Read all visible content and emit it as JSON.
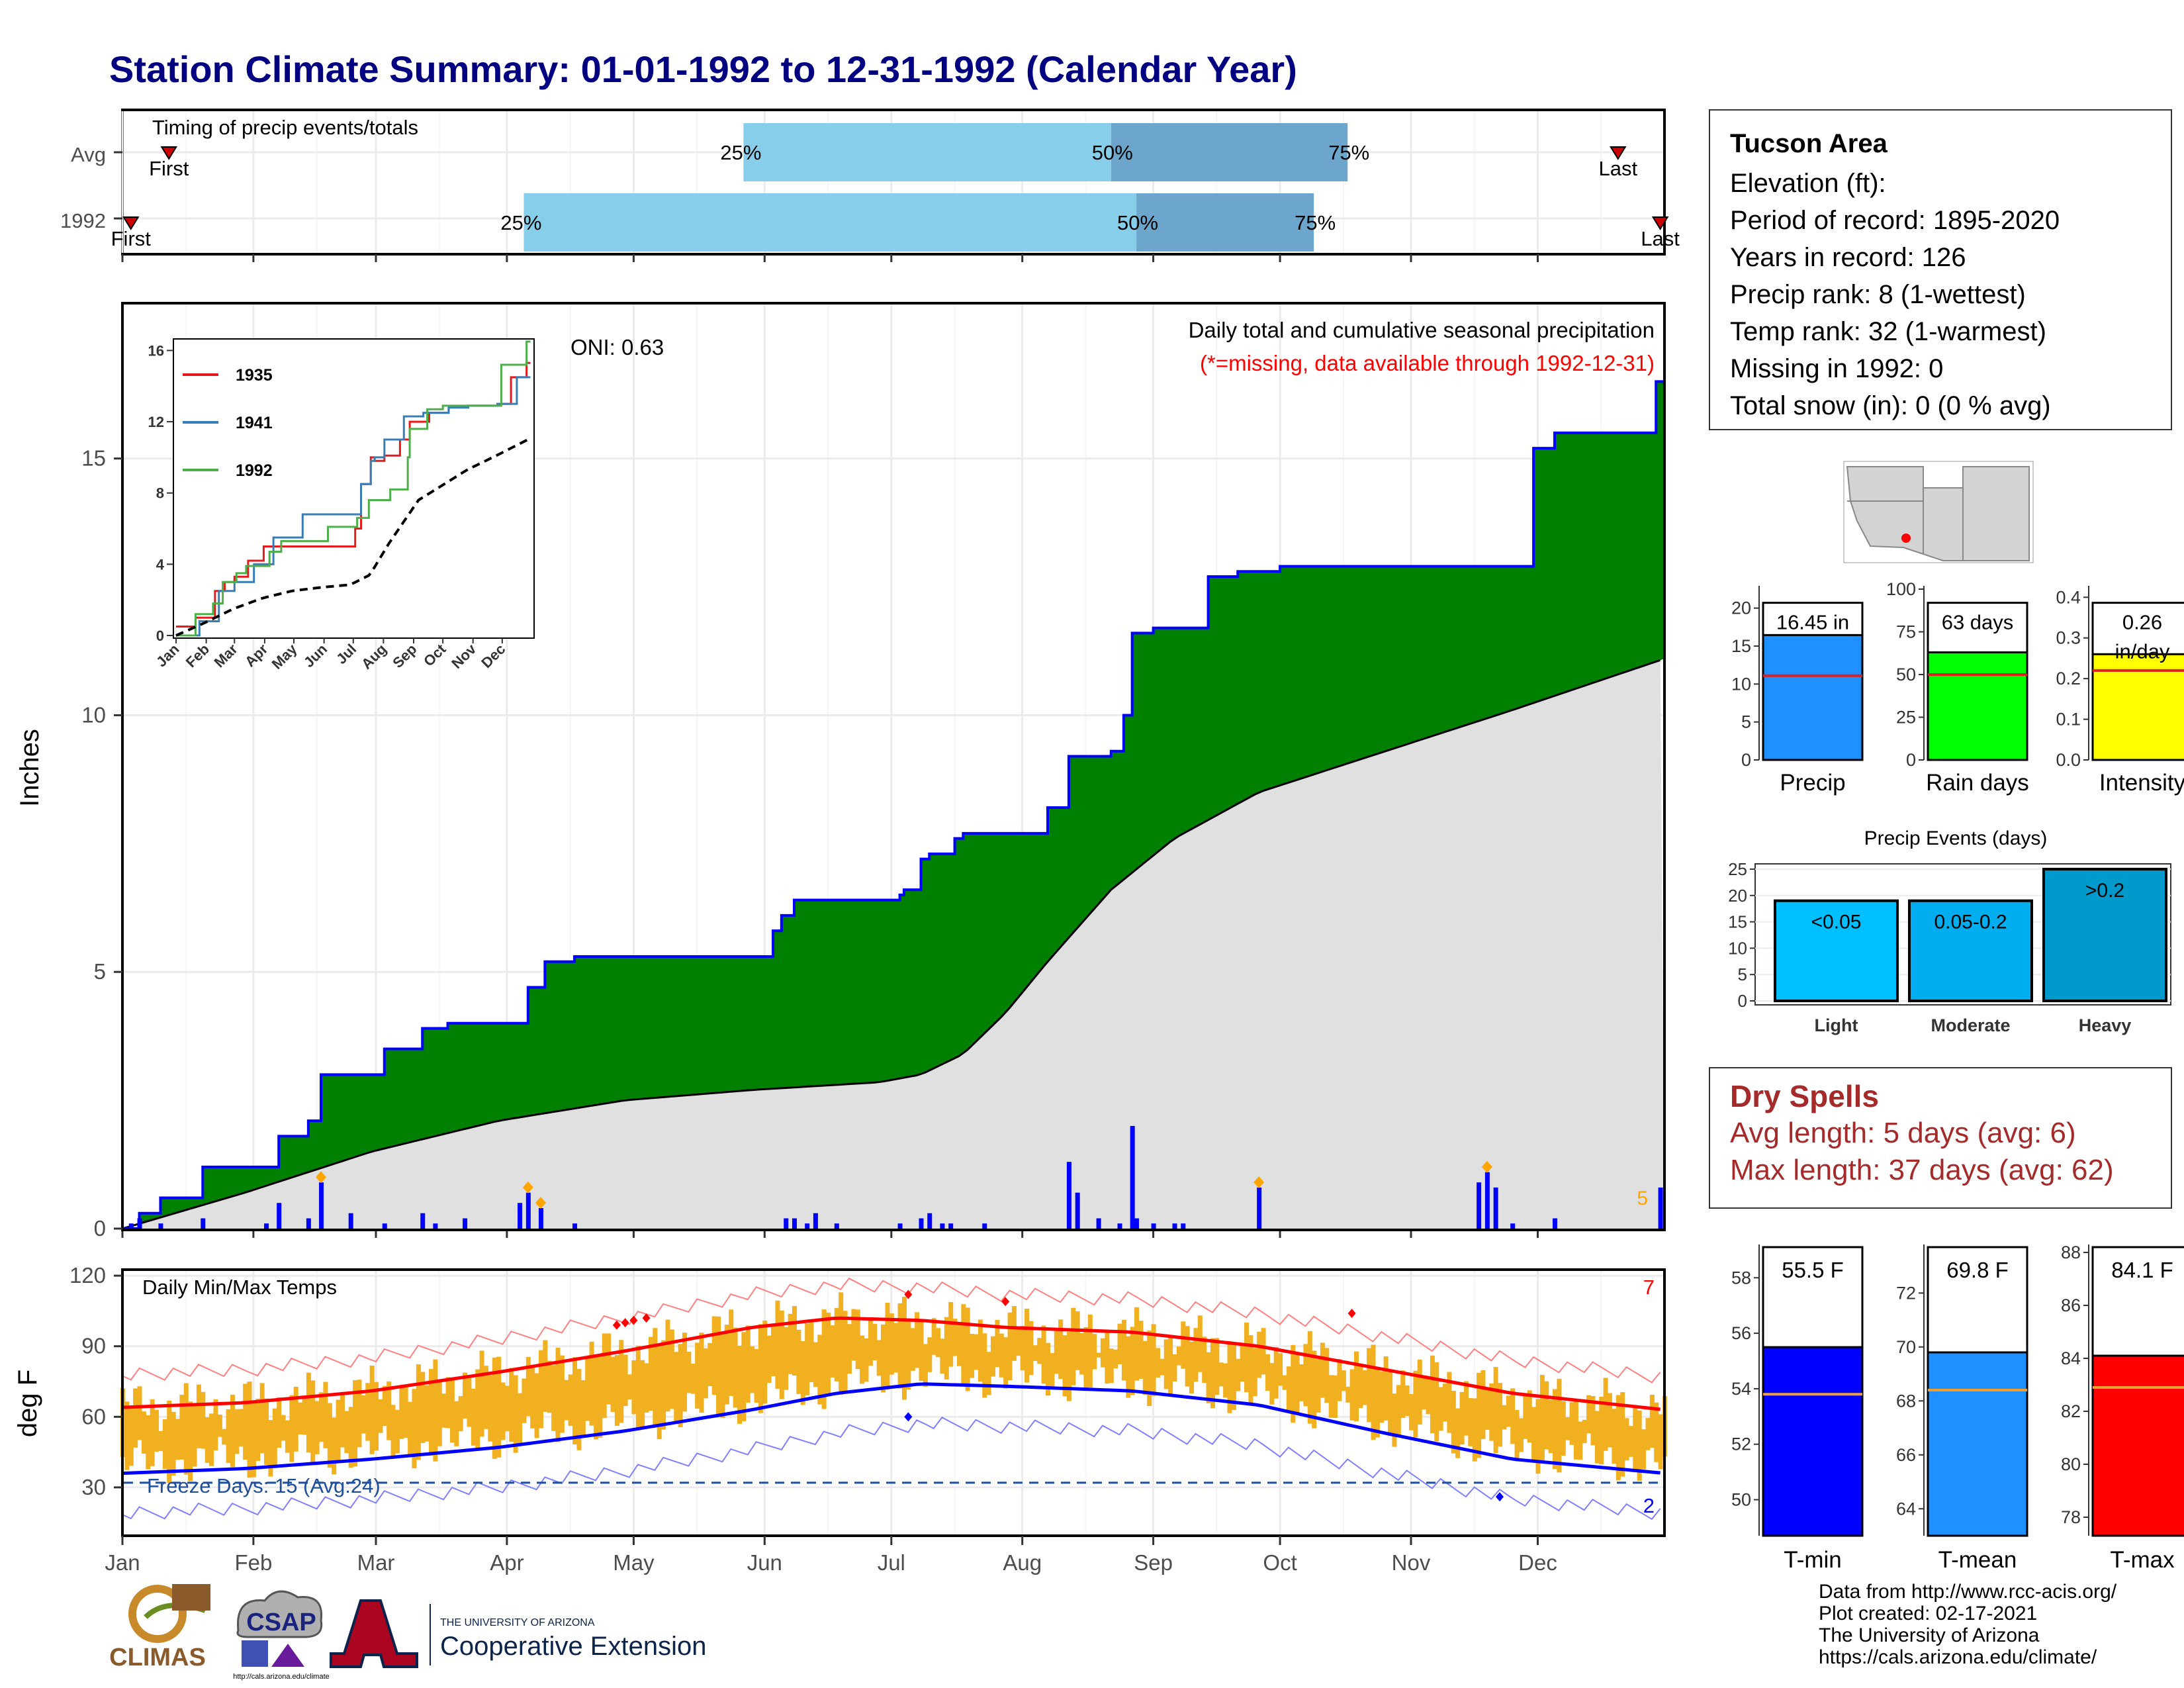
{
  "title": "Station Climate Summary: 01-01-1992 to 12-31-1992 (Calendar Year)",
  "colors": {
    "title": "#000080",
    "cumulative_fill": "#008000",
    "cumulative_line": "#0000FF",
    "avg_fill": "#E0E0E0",
    "daily_bar": "#0000FF",
    "timing_light": "#87CEEB",
    "timing_dark": "#6CA6CD",
    "temp_bar": "#F0B020",
    "avg_max": "#FF0000",
    "avg_min": "#0000FF",
    "precip_bar": "#1E90FF",
    "raindays_bar": "#00FF00",
    "intensity_bar": "#FFFF00",
    "events_light": "#00BFFF",
    "events_moderate": "#00AEEF",
    "events_heavy": "#0099CC",
    "tmin_bar": "#0000FF",
    "tmean_bar": "#1E90FF",
    "tmax_bar": "#FF0000",
    "dry_text": "#A52A2A"
  },
  "timing": {
    "label": "Timing of precip events/totals",
    "rows": [
      {
        "name": "Avg",
        "first_label": "First",
        "last_label": "Last",
        "first_doy": 12,
        "p25_doy": 148,
        "p50_doy": 235,
        "p75_doy": 291,
        "last_doy": 355
      },
      {
        "name": "1992",
        "first_label": "First",
        "last_label": "Last",
        "first_doy": 3,
        "p25_doy": 96,
        "p50_doy": 241,
        "p75_doy": 283,
        "last_doy": 365
      }
    ],
    "pct_labels": [
      "25%",
      "50%",
      "75%"
    ]
  },
  "precip_chart": {
    "ylabel": "Inches",
    "yticks": [
      0,
      5,
      10,
      15
    ],
    "ylim": [
      0,
      18
    ],
    "oni": "ONI: 0.63",
    "header": "Daily total and cumulative seasonal precipitation",
    "subheader": "(*=missing, data available through 1992-12-31)",
    "corner_count": "5"
  },
  "inset": {
    "yticks": [
      "0",
      "4",
      "8",
      "12",
      "16"
    ],
    "xticks": [
      "Jan",
      "Feb",
      "Mar",
      "Apr",
      "May",
      "Jun",
      "Jul",
      "Aug",
      "Sep",
      "Oct",
      "Nov",
      "Dec"
    ],
    "legend": [
      "1935",
      "1941",
      "1992"
    ],
    "legend_colors": [
      "#E41A1C",
      "#377EB8",
      "#4DAF4A"
    ]
  },
  "temp_chart": {
    "ylabel": "deg F",
    "label": "Daily Min/Max Temps",
    "yticks": [
      30,
      60,
      90,
      120
    ],
    "freeze": "Freeze Days: 15 (Avg:24)",
    "max_count": "7",
    "min_count": "2"
  },
  "months": [
    "Jan",
    "Feb",
    "Mar",
    "Apr",
    "May",
    "Jun",
    "Jul",
    "Aug",
    "Sep",
    "Oct",
    "Nov",
    "Dec"
  ],
  "station": {
    "name": "Tucson Area",
    "lines": [
      "Elevation (ft):",
      "Period of record: 1895-2020",
      "Years in record: 126",
      "Precip rank: 8 (1-wettest)",
      "Temp rank: 32 (1-warmest)",
      "Missing in 1992: 0",
      "Total snow (in): 0 (0 % avg)"
    ]
  },
  "mini_bars": [
    {
      "label": "Precip",
      "value": 16.45,
      "avg": 11.1,
      "text": "16.45 in",
      "yticks": [
        "0",
        "5",
        "10",
        "15",
        "20"
      ],
      "ymax": 22.5
    },
    {
      "label": "Rain days",
      "value": 63,
      "avg": 50,
      "text": "63 days",
      "yticks": [
        "0",
        "25",
        "50",
        "75",
        "100"
      ],
      "ymax": 100
    },
    {
      "label": "Intensity",
      "value": 0.26,
      "avg": 0.22,
      "text": "0.26",
      "text2": "in/day",
      "yticks": [
        "0.0",
        "0.1",
        "0.2",
        "0.3",
        "0.4"
      ],
      "ymax": 0.42
    }
  ],
  "events": {
    "title": "Precip Events (days)",
    "yticks": [
      "0",
      "5",
      "10",
      "15",
      "20",
      "25"
    ],
    "categories": [
      "Light",
      "Moderate",
      "Heavy"
    ],
    "labels": [
      "<0.05",
      "0.05-0.2",
      ">0.2"
    ],
    "values": [
      19,
      19,
      25
    ]
  },
  "dry_spells": {
    "title": "Dry Spells",
    "lines": [
      "Avg length: 5 days (avg: 6)",
      "Max length: 37 days (avg: 62)"
    ]
  },
  "temp_bars": [
    {
      "label": "T-min",
      "value": 55.5,
      "avg": 53.8,
      "text": "55.5 F",
      "yticks": [
        "50",
        "52",
        "54",
        "56",
        "58"
      ],
      "min": 48.7,
      "max": 59.2
    },
    {
      "label": "T-mean",
      "value": 69.8,
      "avg": 68.4,
      "text": "69.8 F",
      "yticks": [
        "64",
        "66",
        "68",
        "70",
        "72"
      ],
      "min": 63.0,
      "max": 73.8
    },
    {
      "label": "T-max",
      "value": 84.1,
      "avg": 82.9,
      "text": "84.1 F",
      "yticks": [
        "78",
        "80",
        "82",
        "84",
        "86",
        "88"
      ],
      "min": 77.3,
      "max": 88.3
    }
  ],
  "logos": {
    "climas": "CLIMAS",
    "csap": "CSAP",
    "csap_url": "http://cals.arizona.edu/climate",
    "ua_small": "THE UNIVERSITY OF ARIZONA",
    "ua_big": "Cooperative Extension"
  },
  "credits": [
    "Data from http://www.rcc-acis.org/",
    "Plot created: 02-17-2021",
    "The University of Arizona",
    "https://cals.arizona.edu/climate/"
  ],
  "chart_data": [
    {
      "type": "area",
      "title": "Daily total and cumulative seasonal precipitation",
      "ylabel": "Inches",
      "ylim": [
        0,
        18
      ],
      "x_unit": "day of year 1992",
      "series": [
        {
          "name": "1992",
          "x": [
            1,
            5,
            10,
            20,
            35,
            38,
            45,
            48,
            55,
            58,
            63,
            72,
            78,
            83,
            95,
            97,
            101,
            108,
            115,
            130,
            140,
            150,
            155,
            157,
            160,
            170,
            180,
            183,
            185,
            186,
            190,
            192,
            195,
            198,
            200,
            210,
            217,
            220,
            225,
            227,
            235,
            238,
            240,
            245,
            248,
            255,
            258,
            265,
            270,
            275,
            330,
            335,
            340,
            350,
            360,
            364,
            366
          ],
          "values": [
            0.0,
            0.3,
            0.6,
            1.2,
            1.2,
            1.8,
            2.1,
            3.0,
            3.0,
            3.0,
            3.5,
            3.9,
            4.0,
            4.0,
            4.0,
            4.7,
            5.2,
            5.3,
            5.3,
            5.3,
            5.3,
            5.3,
            5.8,
            6.1,
            6.4,
            6.4,
            6.4,
            6.4,
            6.5,
            6.6,
            7.2,
            7.3,
            7.3,
            7.6,
            7.7,
            7.7,
            7.7,
            8.2,
            9.2,
            9.2,
            9.3,
            10.0,
            11.6,
            11.7,
            11.7,
            11.7,
            12.7,
            12.8,
            12.8,
            12.9,
            12.9,
            15.2,
            15.5,
            15.5,
            15.5,
            16.5,
            16.45
          ]
        },
        {
          "name": "average",
          "x": [
            1,
            30,
            60,
            90,
            120,
            150,
            180,
            190,
            200,
            210,
            220,
            235,
            250,
            270,
            300,
            330,
            366
          ],
          "values": [
            0.0,
            0.7,
            1.5,
            2.1,
            2.5,
            2.7,
            2.85,
            3.0,
            3.4,
            4.2,
            5.2,
            6.6,
            7.6,
            8.5,
            9.3,
            10.1,
            11.1
          ]
        }
      ],
      "daily": {
        "x": [
          3,
          5,
          10,
          20,
          35,
          38,
          45,
          48,
          55,
          63,
          72,
          75,
          82,
          95,
          97,
          100,
          108,
          158,
          160,
          163,
          165,
          170,
          185,
          190,
          192,
          195,
          197,
          205,
          225,
          227,
          232,
          237,
          240,
          241,
          245,
          250,
          252,
          270,
          322,
          324,
          326,
          330,
          340,
          365
        ],
        "values": [
          0.1,
          0.2,
          0.1,
          0.2,
          0.1,
          0.5,
          0.2,
          0.9,
          0.3,
          0.1,
          0.3,
          0.1,
          0.2,
          0.5,
          0.7,
          0.4,
          0.1,
          0.2,
          0.2,
          0.1,
          0.3,
          0.1,
          0.1,
          0.2,
          0.3,
          0.1,
          0.1,
          0.1,
          1.3,
          0.7,
          0.2,
          0.1,
          2.0,
          0.2,
          0.1,
          0.1,
          0.1,
          0.8,
          0.9,
          1.1,
          0.8,
          0.1,
          0.2,
          0.8
        ]
      }
    },
    {
      "type": "line",
      "title": "Daily Min/Max Temps",
      "ylabel": "deg F",
      "ylim": [
        10,
        122
      ],
      "series": [
        {
          "name": "avg max",
          "x": [
            1,
            30,
            60,
            90,
            120,
            150,
            170,
            190,
            210,
            240,
            270,
            300,
            330,
            366
          ],
          "values": [
            64,
            66,
            71,
            79,
            88,
            98,
            102,
            101,
            98,
            96,
            90,
            80,
            70,
            63
          ]
        },
        {
          "name": "avg min",
          "x": [
            1,
            30,
            60,
            90,
            120,
            150,
            170,
            190,
            210,
            240,
            270,
            300,
            330,
            366
          ],
          "values": [
            36,
            38,
            42,
            47,
            54,
            63,
            70,
            74,
            73,
            71,
            65,
            53,
            42,
            36
          ]
        }
      ]
    },
    {
      "type": "line",
      "title": "inset cumulative precipitation",
      "ylim": [
        0,
        16.5
      ],
      "series": [
        {
          "name": "1935",
          "x": [
            1,
            20,
            40,
            50,
            60,
            75,
            90,
            120,
            150,
            175,
            185,
            190,
            200,
            205,
            215,
            230,
            240,
            260,
            280,
            300,
            330,
            345,
            360,
            366
          ],
          "values": [
            0.5,
            1.0,
            2.5,
            3.0,
            3.3,
            4.2,
            5.0,
            5.0,
            5.0,
            5.0,
            6.0,
            8.5,
            10.0,
            9.8,
            10.1,
            11.0,
            12.0,
            12.5,
            12.8,
            12.9,
            13.0,
            14.5,
            15.3,
            15.8
          ]
        },
        {
          "name": "1941",
          "x": [
            1,
            25,
            45,
            60,
            80,
            100,
            130,
            150,
            170,
            190,
            200,
            205,
            215,
            235,
            255,
            280,
            300,
            330,
            350,
            366
          ],
          "values": [
            0.0,
            0.8,
            2.5,
            3.0,
            4.0,
            5.5,
            6.8,
            6.8,
            6.8,
            8.5,
            9.8,
            10.0,
            11.0,
            12.3,
            12.5,
            12.8,
            12.9,
            13.0,
            14.5,
            16.2
          ]
        },
        {
          "name": "1992",
          "x": [
            1,
            20,
            38,
            48,
            63,
            72,
            97,
            108,
            157,
            186,
            198,
            220,
            238,
            240,
            258,
            275,
            330,
            335,
            360,
            366
          ],
          "values": [
            0.0,
            1.2,
            1.8,
            3.0,
            3.5,
            3.9,
            4.7,
            5.3,
            6.1,
            6.6,
            7.6,
            8.2,
            10.0,
            11.6,
            12.7,
            12.9,
            12.9,
            15.2,
            16.5,
            16.45
          ]
        },
        {
          "name": "average",
          "x": [
            1,
            30,
            60,
            90,
            120,
            150,
            180,
            200,
            220,
            250,
            300,
            330,
            366
          ],
          "values": [
            0.0,
            0.7,
            1.5,
            2.1,
            2.5,
            2.7,
            2.85,
            3.4,
            5.2,
            7.6,
            9.3,
            10.1,
            11.1
          ]
        }
      ]
    },
    {
      "type": "bar",
      "title": "Precip Events (days)",
      "categories": [
        "Light",
        "Moderate",
        "Heavy"
      ],
      "values": [
        19,
        19,
        25
      ]
    }
  ]
}
